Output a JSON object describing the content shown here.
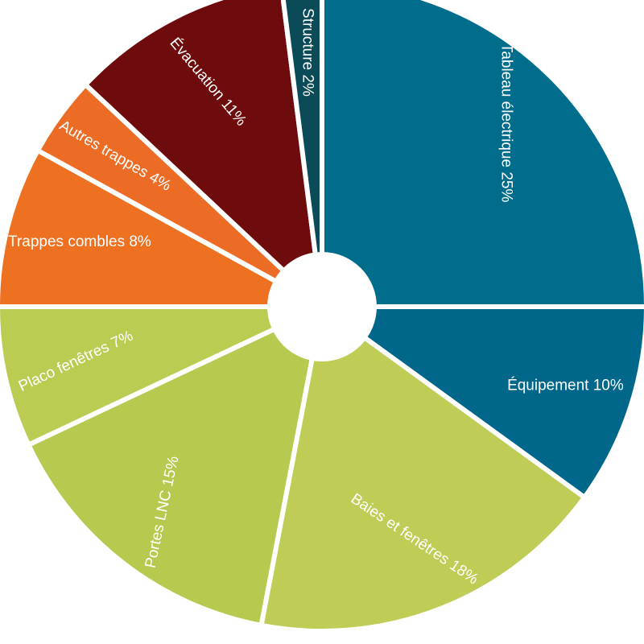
{
  "chart_data": {
    "type": "pie",
    "variant": "donut",
    "title": "",
    "slices": [
      {
        "label": "Tableau électrique 25%",
        "value": 25,
        "color": "#006d8c"
      },
      {
        "label": "Équipement 10%",
        "value": 10,
        "color": "#00678a"
      },
      {
        "label": "Baies et fenêtres 18%",
        "value": 18,
        "color": "#bfcc55"
      },
      {
        "label": "Portes LNC 15%",
        "value": 15,
        "color": "#b8c94f"
      },
      {
        "label": "Placo fenêtres 7%",
        "value": 7,
        "color": "#bccb52"
      },
      {
        "label": "Trappes combles 8%",
        "value": 8,
        "color": "#ee7122"
      },
      {
        "label": "Autres trappes 4%",
        "value": 4,
        "color": "#ec6c25"
      },
      {
        "label": "Évacuation 11%",
        "value": 11,
        "color": "#6e0b0c"
      },
      {
        "label": "Structure 2%",
        "value": 2,
        "color": "#0b4a57"
      }
    ]
  }
}
